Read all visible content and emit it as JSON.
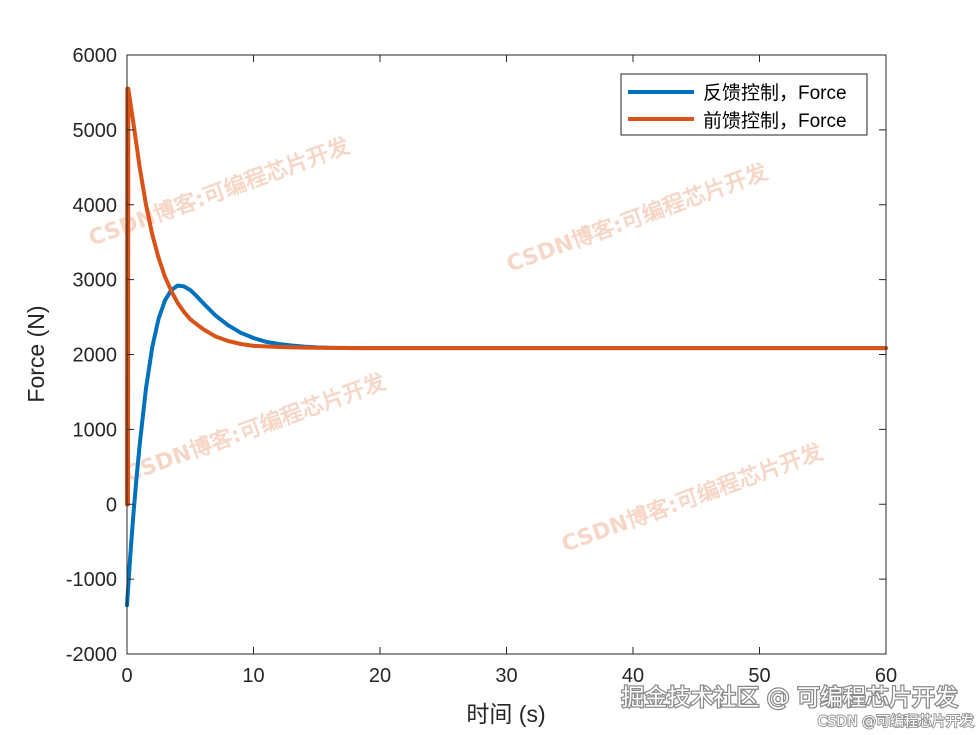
{
  "chart_data": {
    "type": "line",
    "title": "",
    "xlabel": "时间 (s)",
    "ylabel": "Force (N)",
    "xlim": [
      0,
      60
    ],
    "ylim": [
      -2000,
      6000
    ],
    "xticks": [
      0,
      10,
      20,
      30,
      40,
      50,
      60
    ],
    "yticks": [
      -2000,
      -1000,
      0,
      1000,
      2000,
      3000,
      4000,
      5000,
      6000
    ],
    "grid": false,
    "legend_position": "top-right",
    "series": [
      {
        "name": "反馈控制，Force",
        "color": "#0072BD",
        "x": [
          0,
          0.25,
          0.5,
          0.75,
          1,
          1.5,
          2,
          2.5,
          3,
          3.5,
          4,
          4.5,
          5,
          5.5,
          6,
          7,
          8,
          9,
          10,
          11,
          12,
          13,
          14,
          15,
          16,
          17,
          18,
          19,
          20,
          22,
          25,
          30,
          35,
          40,
          45,
          50,
          55,
          60
        ],
        "y": [
          -1350,
          -700,
          -150,
          350,
          800,
          1550,
          2100,
          2480,
          2720,
          2860,
          2920,
          2910,
          2860,
          2780,
          2690,
          2520,
          2390,
          2290,
          2220,
          2170,
          2140,
          2120,
          2105,
          2095,
          2090,
          2088,
          2087,
          2086,
          2085,
          2085,
          2085,
          2085,
          2085,
          2085,
          2085,
          2085,
          2085,
          2085
        ]
      },
      {
        "name": "前馈控制，Force",
        "color": "#D95319",
        "x": [
          0,
          0.02,
          0.04,
          0.06,
          0.08,
          0.1,
          0.5,
          1,
          1.5,
          2,
          2.5,
          3,
          3.5,
          4,
          4.5,
          5,
          6,
          7,
          8,
          9,
          10,
          12,
          14,
          16,
          18,
          20,
          25,
          30,
          35,
          40,
          45,
          50,
          55,
          60
        ],
        "y": [
          0,
          5550,
          0,
          5550,
          0,
          5550,
          5100,
          4500,
          4000,
          3600,
          3290,
          3040,
          2850,
          2690,
          2570,
          2470,
          2340,
          2240,
          2180,
          2140,
          2115,
          2100,
          2092,
          2088,
          2086,
          2085,
          2085,
          2085,
          2085,
          2085,
          2085,
          2085,
          2085,
          2085
        ]
      }
    ]
  },
  "watermark": {
    "text": "CSDN博客:可编程芯片开发",
    "color": "#f0b89a"
  },
  "credit": {
    "line1": "掘金技术社区 @ 可编程芯片开发",
    "line2": "CSDN @可编程芯片开发"
  }
}
